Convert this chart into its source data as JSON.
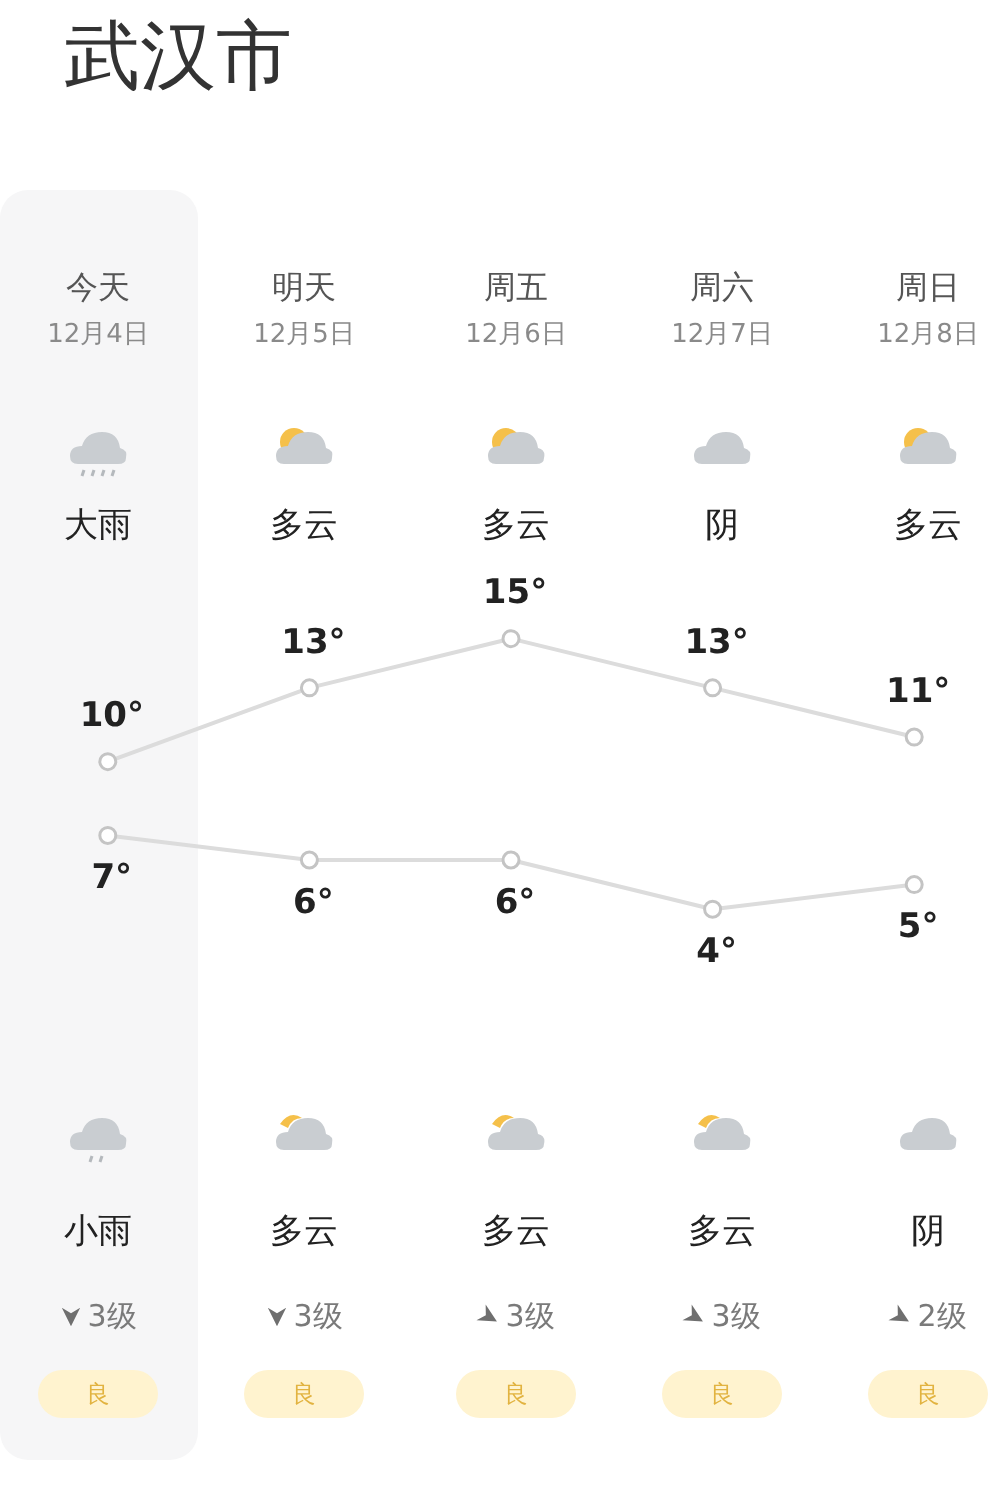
{
  "chart_data": {
    "type": "line",
    "title": "武汉市",
    "categories": [
      "今天",
      "明天",
      "周五",
      "周六",
      "周日"
    ],
    "series": [
      {
        "color": "#dcdcdc",
        "values": [
          10,
          13,
          15,
          13,
          11
        ],
        "value_labels": [
          "10°",
          "13°",
          "15°",
          "13°",
          "11°"
        ]
      },
      {
        "color": "#dcdcdc",
        "values": [
          7,
          6,
          6,
          4,
          5
        ],
        "value_labels": [
          "7°",
          "6°",
          "6°",
          "4°",
          "5°"
        ]
      }
    ],
    "bands": [
      {
        "axis": "x",
        "from": "今天",
        "to": "今天",
        "color": "#f6f6f7"
      }
    ],
    "annotations": [
      "12月4日",
      "12月5日",
      "12月6日",
      "12月7日",
      "12月8日",
      "大雨",
      "多云",
      "多云",
      "阴",
      "多云",
      "小雨",
      "多云",
      "多云",
      "多云",
      "阴",
      "3级",
      "3级",
      "3级",
      "3级",
      "2级",
      "良",
      "良",
      "良",
      "良",
      "良"
    ],
    "relative": false,
    "legend": false,
    "tick_labels": false,
    "marker": "circle",
    "line_style": "solid"
  }
}
